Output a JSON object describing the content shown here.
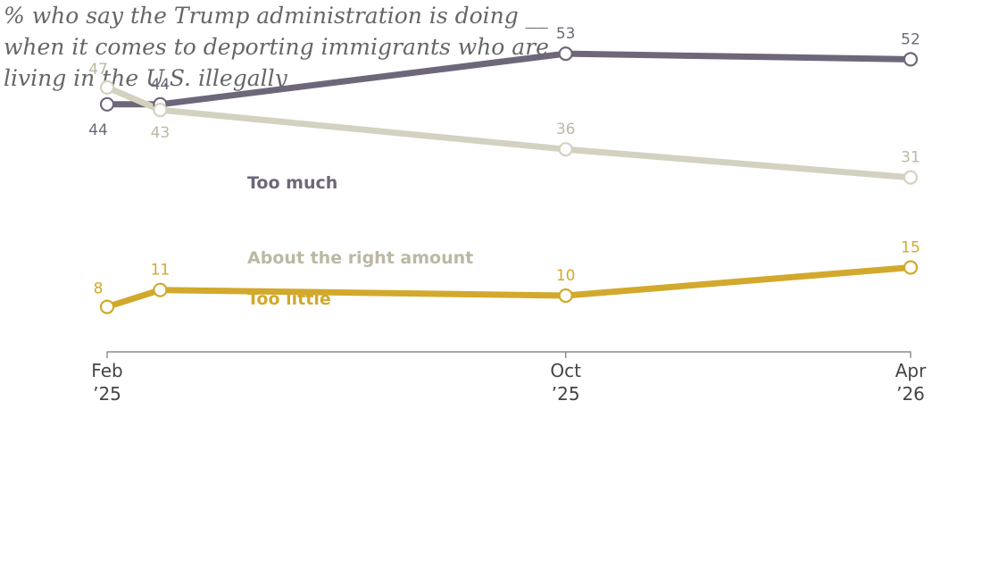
{
  "title": "% who say the Trump administration is doing __ when it comes to deporting immigrants who are living in the U.S. illegally",
  "chart_data": {
    "type": "line",
    "x": [
      "2025-02-01",
      "2025-03-01",
      "2025-10-01",
      "2026-04-01"
    ],
    "x_ticks": [
      {
        "date": "2025-02-01",
        "line1": "Feb",
        "line2": "’25"
      },
      {
        "date": "2025-10-01",
        "line1": "Oct",
        "line2": "’25"
      },
      {
        "date": "2026-04-01",
        "line1": "Apr",
        "line2": "’26"
      }
    ],
    "series": [
      {
        "name": "Too much",
        "color": "#6e6779",
        "values": [
          44,
          44,
          53,
          52
        ]
      },
      {
        "name": "About the right amount",
        "color": "#d4d1c0",
        "label_color": "#bcb8a4",
        "values": [
          47,
          43,
          36,
          31
        ]
      },
      {
        "name": "Too little",
        "color": "#d2a92c",
        "values": [
          8,
          11,
          10,
          15
        ]
      }
    ],
    "ylim": [
      0,
      60
    ],
    "grid": false,
    "legend": "inline labels"
  }
}
